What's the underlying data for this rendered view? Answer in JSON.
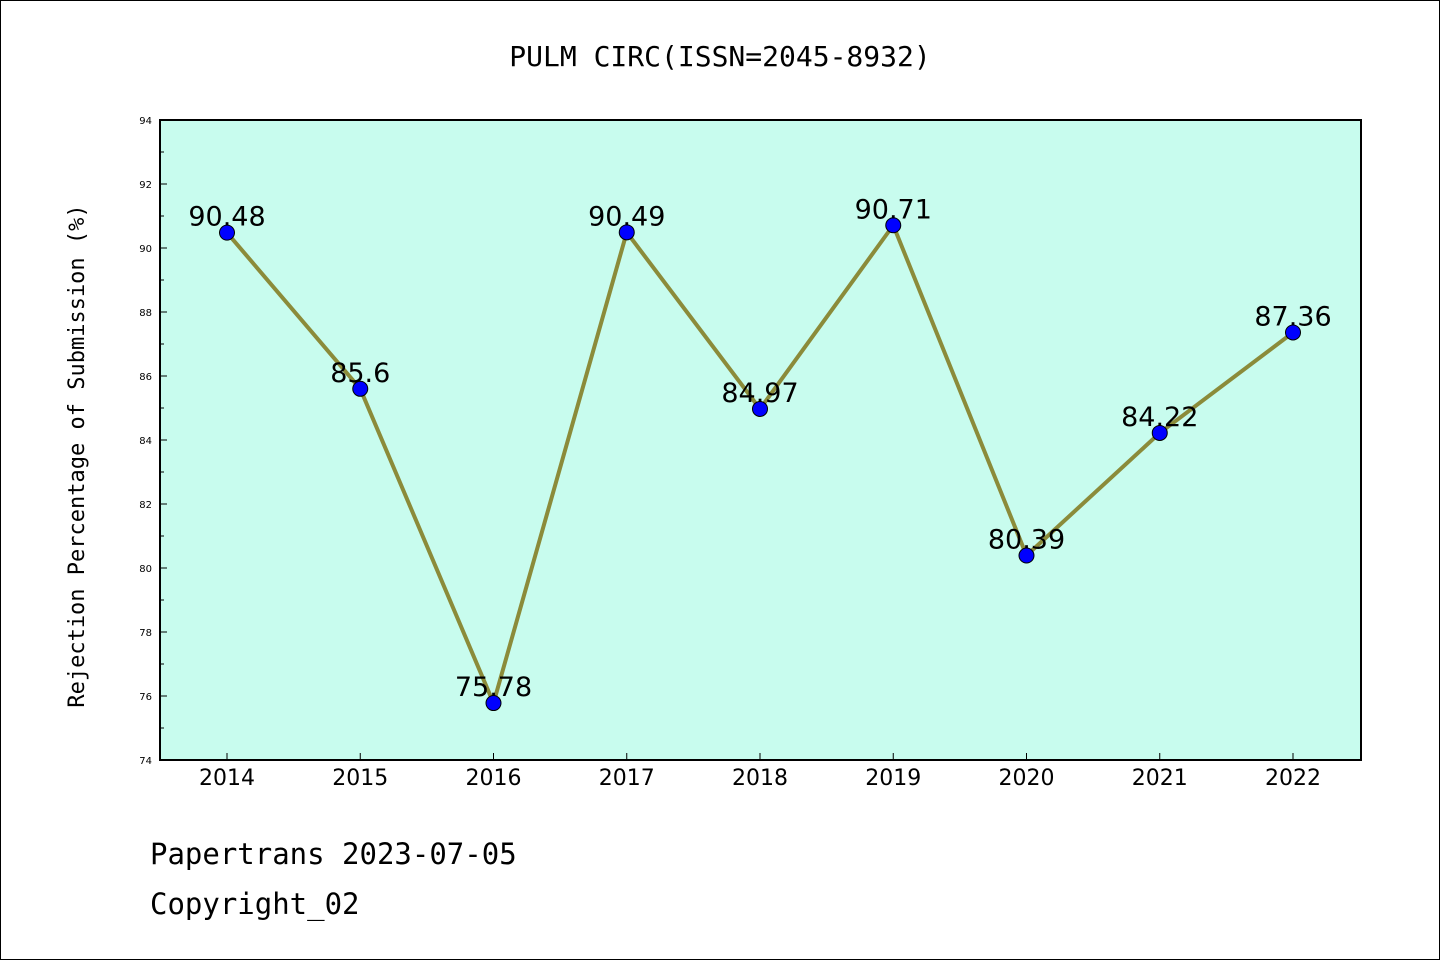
{
  "chart_data": {
    "type": "line",
    "title": "PULM CIRC(ISSN=2045-8932)",
    "ylabel": "Rejection Percentage of Submission (%)",
    "xlabel": "",
    "categories": [
      "2014",
      "2015",
      "2016",
      "2017",
      "2018",
      "2019",
      "2020",
      "2021",
      "2022"
    ],
    "series": [
      {
        "values": [
          90.48,
          85.6,
          75.78,
          90.49,
          84.97,
          90.71,
          80.39,
          84.22,
          87.36
        ],
        "labels": [
          "90.48",
          "85.6",
          "75.78",
          "90.49",
          "84.97",
          "90.71",
          "80.39",
          "84.22",
          "87.36"
        ]
      }
    ],
    "ylim": [
      74,
      94
    ],
    "yticks": [
      74,
      76,
      78,
      80,
      82,
      84,
      86,
      88,
      90,
      92,
      94
    ],
    "grid": false,
    "colors": {
      "plot_background": "#c8fcee",
      "line": "#8b8b3a",
      "marker": "#0000ff"
    }
  },
  "footer": {
    "line1": "Papertrans 2023-07-05",
    "line2": "Copyright_02"
  }
}
